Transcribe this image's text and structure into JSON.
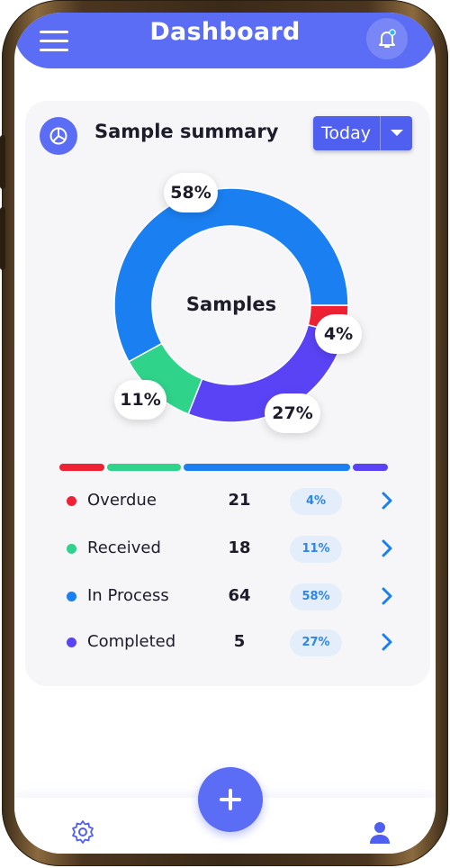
{
  "header": {
    "title": "Dashboard",
    "menu_icon": "hamburger-menu-icon",
    "notification_icon": "bell-icon"
  },
  "summary": {
    "icon": "pie-chart-icon",
    "title": "Sample summary",
    "period": "Today",
    "center_label": "Samples"
  },
  "chart_data": {
    "type": "pie",
    "title": "",
    "center_label": "Samples",
    "categories": [
      "Overdue",
      "Received",
      "In Process",
      "Completed"
    ],
    "values": [
      4,
      11,
      58,
      27
    ],
    "counts": [
      21,
      18,
      64,
      5
    ],
    "percent_labels": [
      "4%",
      "11%",
      "58%",
      "27%"
    ],
    "colors": [
      "#ee2233",
      "#2fd38a",
      "#1a7ff0",
      "#5a43f5"
    ]
  },
  "legend": [
    {
      "label": "Overdue",
      "count": "21",
      "percent": "4%",
      "color": "#ee2233"
    },
    {
      "label": "Received",
      "count": "18",
      "percent": "11%",
      "color": "#2fd38a"
    },
    {
      "label": "In Process",
      "count": "64",
      "percent": "58%",
      "color": "#1a7ff0"
    },
    {
      "label": "Completed",
      "count": "5",
      "percent": "27%",
      "color": "#5a43f5"
    }
  ],
  "progress_bar": {
    "segments": [
      {
        "label": "Overdue",
        "fraction": 0.14,
        "color": "#ee2233"
      },
      {
        "label": "Received",
        "fraction": 0.23,
        "color": "#2fd38a"
      },
      {
        "label": "In Process",
        "fraction": 0.52,
        "color": "#1a7ff0"
      },
      {
        "label": "Completed",
        "fraction": 0.11,
        "color": "#5a43f5"
      }
    ]
  },
  "bottom_nav": {
    "settings_icon": "gear-icon",
    "profile_icon": "user-icon",
    "fab_icon": "plus-icon"
  },
  "colors": {
    "accent": "#5b6cf5",
    "pill_bg": "#e4eefb",
    "pill_text": "#2d86e6"
  }
}
